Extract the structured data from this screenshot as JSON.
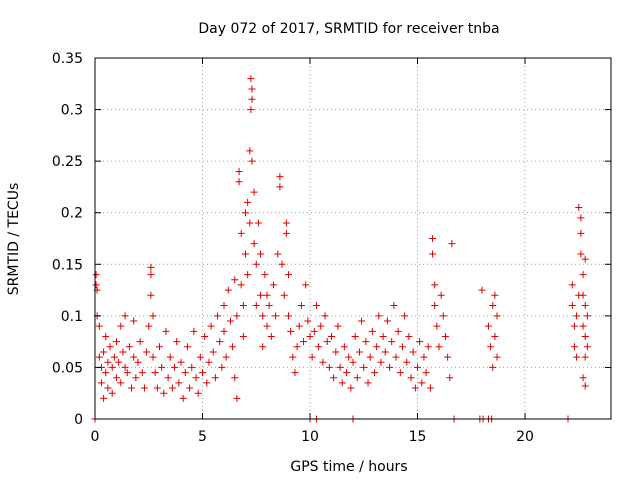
{
  "chart_data": {
    "type": "scatter",
    "title": "Day 072 of 2017, SRMTID for receiver tnba",
    "xlabel": "GPS time / hours",
    "ylabel": "SRMTID / TECUs",
    "xlim": [
      0,
      24
    ],
    "ylim": [
      0,
      0.35
    ],
    "xticks": [
      0,
      5,
      10,
      15,
      20
    ],
    "xtick_labels": [
      "0",
      "5",
      "10",
      "15",
      "20"
    ],
    "yticks": [
      0,
      0.05,
      0.1,
      0.15,
      0.2,
      0.25,
      0.3,
      0.35
    ],
    "ytick_labels": [
      "0",
      "0.05",
      "0.1",
      "0.15",
      "0.2",
      "0.25",
      "0.3",
      "0.35"
    ],
    "grid": true,
    "marker": "+",
    "color": "#e00000",
    "series": [
      {
        "name": "SRMTID",
        "points": [
          [
            0.05,
            0.14
          ],
          [
            0.05,
            0.13
          ],
          [
            0.1,
            0.125
          ],
          [
            0.1,
            0.1
          ],
          [
            0.2,
            0.09
          ],
          [
            0.2,
            0.06
          ],
          [
            0.3,
            0.05
          ],
          [
            0.3,
            0.035
          ],
          [
            0.4,
            0.065
          ],
          [
            0.4,
            0.02
          ],
          [
            0.5,
            0.08
          ],
          [
            0.5,
            0.045
          ],
          [
            0.6,
            0.055
          ],
          [
            0.6,
            0.03
          ],
          [
            0.7,
            0.07
          ],
          [
            0.8,
            0.05
          ],
          [
            0.8,
            0.025
          ],
          [
            0.9,
            0.06
          ],
          [
            1.0,
            0.075
          ],
          [
            1.0,
            0.04
          ],
          [
            1.1,
            0.055
          ],
          [
            1.2,
            0.09
          ],
          [
            1.2,
            0.035
          ],
          [
            1.3,
            0.065
          ],
          [
            1.4,
            0.1
          ],
          [
            1.4,
            0.05
          ],
          [
            1.5,
            0.045
          ],
          [
            1.6,
            0.07
          ],
          [
            1.7,
            0.03
          ],
          [
            1.8,
            0.06
          ],
          [
            1.8,
            0.095
          ],
          [
            1.9,
            0.04
          ],
          [
            2.0,
            0.055
          ],
          [
            2.1,
            0.075
          ],
          [
            2.2,
            0.045
          ],
          [
            2.3,
            0.03
          ],
          [
            2.4,
            0.065
          ],
          [
            2.5,
            0.09
          ],
          [
            2.6,
            0.147
          ],
          [
            2.6,
            0.14
          ],
          [
            2.6,
            0.12
          ],
          [
            2.7,
            0.1
          ],
          [
            2.7,
            0.06
          ],
          [
            2.8,
            0.045
          ],
          [
            2.9,
            0.03
          ],
          [
            3.0,
            0.07
          ],
          [
            3.1,
            0.05
          ],
          [
            3.2,
            0.025
          ],
          [
            3.3,
            0.085
          ],
          [
            3.4,
            0.04
          ],
          [
            3.5,
            0.06
          ],
          [
            3.6,
            0.03
          ],
          [
            3.7,
            0.05
          ],
          [
            3.8,
            0.075
          ],
          [
            3.9,
            0.035
          ],
          [
            4.0,
            0.055
          ],
          [
            4.1,
            0.02
          ],
          [
            4.2,
            0.045
          ],
          [
            4.3,
            0.07
          ],
          [
            4.4,
            0.03
          ],
          [
            4.5,
            0.05
          ],
          [
            4.6,
            0.085
          ],
          [
            4.7,
            0.04
          ],
          [
            4.8,
            0.025
          ],
          [
            4.9,
            0.06
          ],
          [
            5.0,
            0.045
          ],
          [
            5.1,
            0.08
          ],
          [
            5.2,
            0.035
          ],
          [
            5.3,
            0.055
          ],
          [
            5.4,
            0.09
          ],
          [
            5.5,
            0.065
          ],
          [
            5.6,
            0.04
          ],
          [
            5.7,
            0.1
          ],
          [
            5.8,
            0.075
          ],
          [
            5.9,
            0.05
          ],
          [
            6.0,
            0.11
          ],
          [
            6.0,
            0.085
          ],
          [
            6.1,
            0.06
          ],
          [
            6.2,
            0.125
          ],
          [
            6.3,
            0.095
          ],
          [
            6.4,
            0.07
          ],
          [
            6.5,
            0.135
          ],
          [
            6.5,
            0.04
          ],
          [
            6.6,
            0.1
          ],
          [
            6.6,
            0.02
          ],
          [
            6.7,
            0.24
          ],
          [
            6.7,
            0.23
          ],
          [
            6.8,
            0.18
          ],
          [
            6.8,
            0.13
          ],
          [
            6.9,
            0.11
          ],
          [
            6.9,
            0.08
          ],
          [
            7.0,
            0.2
          ],
          [
            7.0,
            0.16
          ],
          [
            7.1,
            0.21
          ],
          [
            7.1,
            0.14
          ],
          [
            7.2,
            0.26
          ],
          [
            7.2,
            0.19
          ],
          [
            7.25,
            0.33
          ],
          [
            7.25,
            0.3
          ],
          [
            7.3,
            0.32
          ],
          [
            7.3,
            0.31
          ],
          [
            7.3,
            0.25
          ],
          [
            7.4,
            0.22
          ],
          [
            7.4,
            0.17
          ],
          [
            7.5,
            0.15
          ],
          [
            7.5,
            0.11
          ],
          [
            7.6,
            0.19
          ],
          [
            7.7,
            0.16
          ],
          [
            7.7,
            0.12
          ],
          [
            7.8,
            0.1
          ],
          [
            7.8,
            0.07
          ],
          [
            7.9,
            0.14
          ],
          [
            8.0,
            0.12
          ],
          [
            8.0,
            0.09
          ],
          [
            8.1,
            0.11
          ],
          [
            8.2,
            0.08
          ],
          [
            8.3,
            0.13
          ],
          [
            8.4,
            0.1
          ],
          [
            8.5,
            0.16
          ],
          [
            8.6,
            0.235
          ],
          [
            8.6,
            0.225
          ],
          [
            8.7,
            0.15
          ],
          [
            8.8,
            0.12
          ],
          [
            8.9,
            0.19
          ],
          [
            8.9,
            0.18
          ],
          [
            9.0,
            0.14
          ],
          [
            9.0,
            0.1
          ],
          [
            9.1,
            0.085
          ],
          [
            9.2,
            0.06
          ],
          [
            9.3,
            0.045
          ],
          [
            9.4,
            0.07
          ],
          [
            9.5,
            0.09
          ],
          [
            9.6,
            0.11
          ],
          [
            9.7,
            0.075
          ],
          [
            9.8,
            0.13
          ],
          [
            9.9,
            0.095
          ],
          [
            10.0,
            0.08
          ],
          [
            10.1,
            0.06
          ],
          [
            10.2,
            0.085
          ],
          [
            10.3,
            0.11
          ],
          [
            10.4,
            0.07
          ],
          [
            10.5,
            0.09
          ],
          [
            10.6,
            0.055
          ],
          [
            10.7,
            0.1
          ],
          [
            10.8,
            0.075
          ],
          [
            10.9,
            0.05
          ],
          [
            11.0,
            0.08
          ],
          [
            11.1,
            0.04
          ],
          [
            11.2,
            0.065
          ],
          [
            11.3,
            0.09
          ],
          [
            11.4,
            0.05
          ],
          [
            11.5,
            0.035
          ],
          [
            11.6,
            0.07
          ],
          [
            11.7,
            0.045
          ],
          [
            11.8,
            0.06
          ],
          [
            11.9,
            0.03
          ],
          [
            12.0,
            0.055
          ],
          [
            12.1,
            0.08
          ],
          [
            12.2,
            0.04
          ],
          [
            12.3,
            0.065
          ],
          [
            12.4,
            0.095
          ],
          [
            12.5,
            0.05
          ],
          [
            12.6,
            0.075
          ],
          [
            12.7,
            0.035
          ],
          [
            12.8,
            0.06
          ],
          [
            12.9,
            0.085
          ],
          [
            13.0,
            0.045
          ],
          [
            13.1,
            0.07
          ],
          [
            13.2,
            0.1
          ],
          [
            13.3,
            0.055
          ],
          [
            13.4,
            0.08
          ],
          [
            13.5,
            0.065
          ],
          [
            13.6,
            0.095
          ],
          [
            13.7,
            0.05
          ],
          [
            13.8,
            0.075
          ],
          [
            13.9,
            0.11
          ],
          [
            14.0,
            0.06
          ],
          [
            14.1,
            0.085
          ],
          [
            14.2,
            0.045
          ],
          [
            14.3,
            0.07
          ],
          [
            14.4,
            0.1
          ],
          [
            14.5,
            0.055
          ],
          [
            14.6,
            0.08
          ],
          [
            14.7,
            0.04
          ],
          [
            14.8,
            0.065
          ],
          [
            14.9,
            0.03
          ],
          [
            15.0,
            0.05
          ],
          [
            15.1,
            0.075
          ],
          [
            15.2,
            0.035
          ],
          [
            15.3,
            0.06
          ],
          [
            15.4,
            0.045
          ],
          [
            15.5,
            0.07
          ],
          [
            15.6,
            0.03
          ],
          [
            15.7,
            0.175
          ],
          [
            15.7,
            0.16
          ],
          [
            15.8,
            0.13
          ],
          [
            15.8,
            0.11
          ],
          [
            15.9,
            0.09
          ],
          [
            16.0,
            0.07
          ],
          [
            16.1,
            0.12
          ],
          [
            16.2,
            0.1
          ],
          [
            16.3,
            0.08
          ],
          [
            16.4,
            0.06
          ],
          [
            16.5,
            0.04
          ],
          [
            16.6,
            0.17
          ],
          [
            18.0,
            0.125
          ],
          [
            18.3,
            0.09
          ],
          [
            18.4,
            0.07
          ],
          [
            18.5,
            0.05
          ],
          [
            18.5,
            0.11
          ],
          [
            18.6,
            0.12
          ],
          [
            18.6,
            0.08
          ],
          [
            18.7,
            0.06
          ],
          [
            18.7,
            0.1
          ],
          [
            22.2,
            0.13
          ],
          [
            22.2,
            0.11
          ],
          [
            22.3,
            0.09
          ],
          [
            22.3,
            0.07
          ],
          [
            22.4,
            0.06
          ],
          [
            22.4,
            0.1
          ],
          [
            22.5,
            0.12
          ],
          [
            22.5,
            0.205
          ],
          [
            22.6,
            0.195
          ],
          [
            22.6,
            0.18
          ],
          [
            22.6,
            0.16
          ],
          [
            22.7,
            0.14
          ],
          [
            22.7,
            0.12
          ],
          [
            22.7,
            0.09
          ],
          [
            22.8,
            0.155
          ],
          [
            22.8,
            0.11
          ],
          [
            22.8,
            0.08
          ],
          [
            22.8,
            0.06
          ],
          [
            22.9,
            0.1
          ],
          [
            22.9,
            0.07
          ],
          [
            22.7,
            0.04
          ],
          [
            22.8,
            0.032
          ],
          [
            0.0,
            0.0
          ],
          [
            10.0,
            0.0
          ],
          [
            10.3,
            0.0
          ],
          [
            12.0,
            0.0
          ],
          [
            16.7,
            0.0
          ],
          [
            17.9,
            0.0
          ],
          [
            18.05,
            0.0
          ],
          [
            18.3,
            0.0
          ],
          [
            18.45,
            0.0
          ],
          [
            22.0,
            0.0
          ]
        ]
      }
    ]
  }
}
